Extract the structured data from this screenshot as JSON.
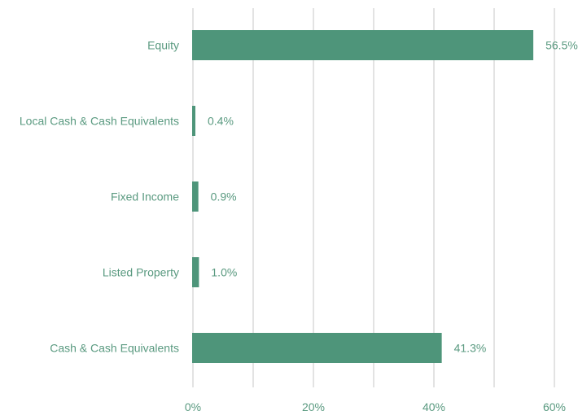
{
  "chart_data": {
    "type": "bar",
    "orientation": "horizontal",
    "categories": [
      "Equity",
      "Local Cash & Cash Equivalents",
      "Fixed Income",
      "Listed Property",
      "Cash & Cash Equivalents"
    ],
    "values": [
      56.5,
      0.4,
      0.9,
      1.0,
      41.3
    ],
    "data_labels": [
      "56.5%",
      "0.4%",
      "0.9%",
      "1.0%",
      "41.3%"
    ],
    "x_ticks": [
      "0%",
      "20%",
      "40%",
      "60%"
    ],
    "xlim": [
      0,
      60
    ],
    "grid": true,
    "colors": {
      "bar": "#4e957a",
      "text": "#5a9a80",
      "grid": "#e3e3e3"
    }
  }
}
